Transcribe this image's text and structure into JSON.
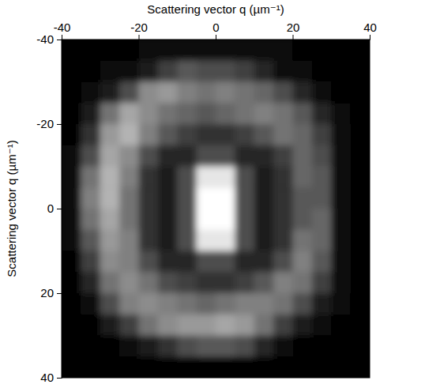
{
  "chart_data": {
    "type": "heatmap",
    "x_label": "Scattering vector q (µm⁻¹)",
    "y_label": "Scattering vector q (µm⁻¹)",
    "xlim": [
      -40,
      40
    ],
    "ylim": [
      -40,
      40
    ],
    "xticks": [
      -40,
      -20,
      0,
      20,
      40
    ],
    "yticks": [
      -40,
      -20,
      0,
      20,
      40
    ],
    "x": [
      -37.5,
      -32.5,
      -27.5,
      -22.5,
      -17.5,
      -12.5,
      -7.5,
      -2.5,
      2.5,
      7.5,
      12.5,
      17.5,
      22.5,
      27.5,
      32.5,
      37.5
    ],
    "y": [
      -37.5,
      -32.5,
      -27.5,
      -22.5,
      -17.5,
      -12.5,
      -7.5,
      -2.5,
      2.5,
      7.5,
      12.5,
      17.5,
      22.5,
      27.5,
      32.5,
      37.5
    ],
    "cells": [
      [
        0.02,
        0.02,
        0.02,
        0.02,
        0.03,
        0.03,
        0.03,
        0.03,
        0.03,
        0.03,
        0.03,
        0.03,
        0.02,
        0.02,
        0.02,
        0.02
      ],
      [
        0.02,
        0.02,
        0.03,
        0.05,
        0.1,
        0.25,
        0.35,
        0.3,
        0.3,
        0.25,
        0.15,
        0.05,
        0.03,
        0.02,
        0.02,
        0.02
      ],
      [
        0.02,
        0.03,
        0.1,
        0.3,
        0.55,
        0.6,
        0.5,
        0.45,
        0.5,
        0.45,
        0.4,
        0.3,
        0.15,
        0.05,
        0.02,
        0.02
      ],
      [
        0.02,
        0.1,
        0.45,
        0.65,
        0.55,
        0.45,
        0.4,
        0.35,
        0.4,
        0.45,
        0.5,
        0.45,
        0.35,
        0.15,
        0.03,
        0.02
      ],
      [
        0.02,
        0.2,
        0.6,
        0.7,
        0.5,
        0.35,
        0.25,
        0.2,
        0.2,
        0.25,
        0.35,
        0.45,
        0.4,
        0.25,
        0.05,
        0.02
      ],
      [
        0.03,
        0.3,
        0.65,
        0.55,
        0.3,
        0.15,
        0.15,
        0.3,
        0.3,
        0.15,
        0.15,
        0.25,
        0.4,
        0.3,
        0.05,
        0.02
      ],
      [
        0.03,
        0.45,
        0.7,
        0.5,
        0.2,
        0.12,
        0.3,
        0.9,
        0.9,
        0.3,
        0.12,
        0.2,
        0.4,
        0.35,
        0.05,
        0.02
      ],
      [
        0.03,
        0.5,
        0.7,
        0.45,
        0.2,
        0.12,
        0.3,
        1.0,
        1.0,
        0.3,
        0.12,
        0.2,
        0.35,
        0.35,
        0.05,
        0.02
      ],
      [
        0.03,
        0.45,
        0.65,
        0.45,
        0.2,
        0.12,
        0.3,
        1.0,
        1.0,
        0.3,
        0.12,
        0.2,
        0.35,
        0.4,
        0.05,
        0.02
      ],
      [
        0.03,
        0.35,
        0.6,
        0.5,
        0.2,
        0.12,
        0.3,
        0.9,
        0.9,
        0.3,
        0.12,
        0.2,
        0.45,
        0.4,
        0.05,
        0.02
      ],
      [
        0.02,
        0.25,
        0.55,
        0.5,
        0.3,
        0.15,
        0.15,
        0.3,
        0.3,
        0.15,
        0.15,
        0.3,
        0.5,
        0.35,
        0.05,
        0.02
      ],
      [
        0.02,
        0.15,
        0.45,
        0.55,
        0.45,
        0.3,
        0.25,
        0.2,
        0.2,
        0.25,
        0.35,
        0.5,
        0.45,
        0.25,
        0.04,
        0.02
      ],
      [
        0.02,
        0.05,
        0.3,
        0.5,
        0.55,
        0.5,
        0.45,
        0.4,
        0.45,
        0.5,
        0.5,
        0.45,
        0.3,
        0.1,
        0.03,
        0.02
      ],
      [
        0.02,
        0.02,
        0.1,
        0.25,
        0.45,
        0.55,
        0.6,
        0.6,
        0.65,
        0.6,
        0.45,
        0.25,
        0.1,
        0.03,
        0.02,
        0.02
      ],
      [
        0.02,
        0.02,
        0.02,
        0.05,
        0.1,
        0.2,
        0.3,
        0.35,
        0.35,
        0.3,
        0.15,
        0.05,
        0.02,
        0.02,
        0.02,
        0.02
      ],
      [
        0.02,
        0.02,
        0.02,
        0.02,
        0.02,
        0.02,
        0.02,
        0.02,
        0.02,
        0.02,
        0.02,
        0.02,
        0.02,
        0.02,
        0.02,
        0.02
      ]
    ]
  }
}
